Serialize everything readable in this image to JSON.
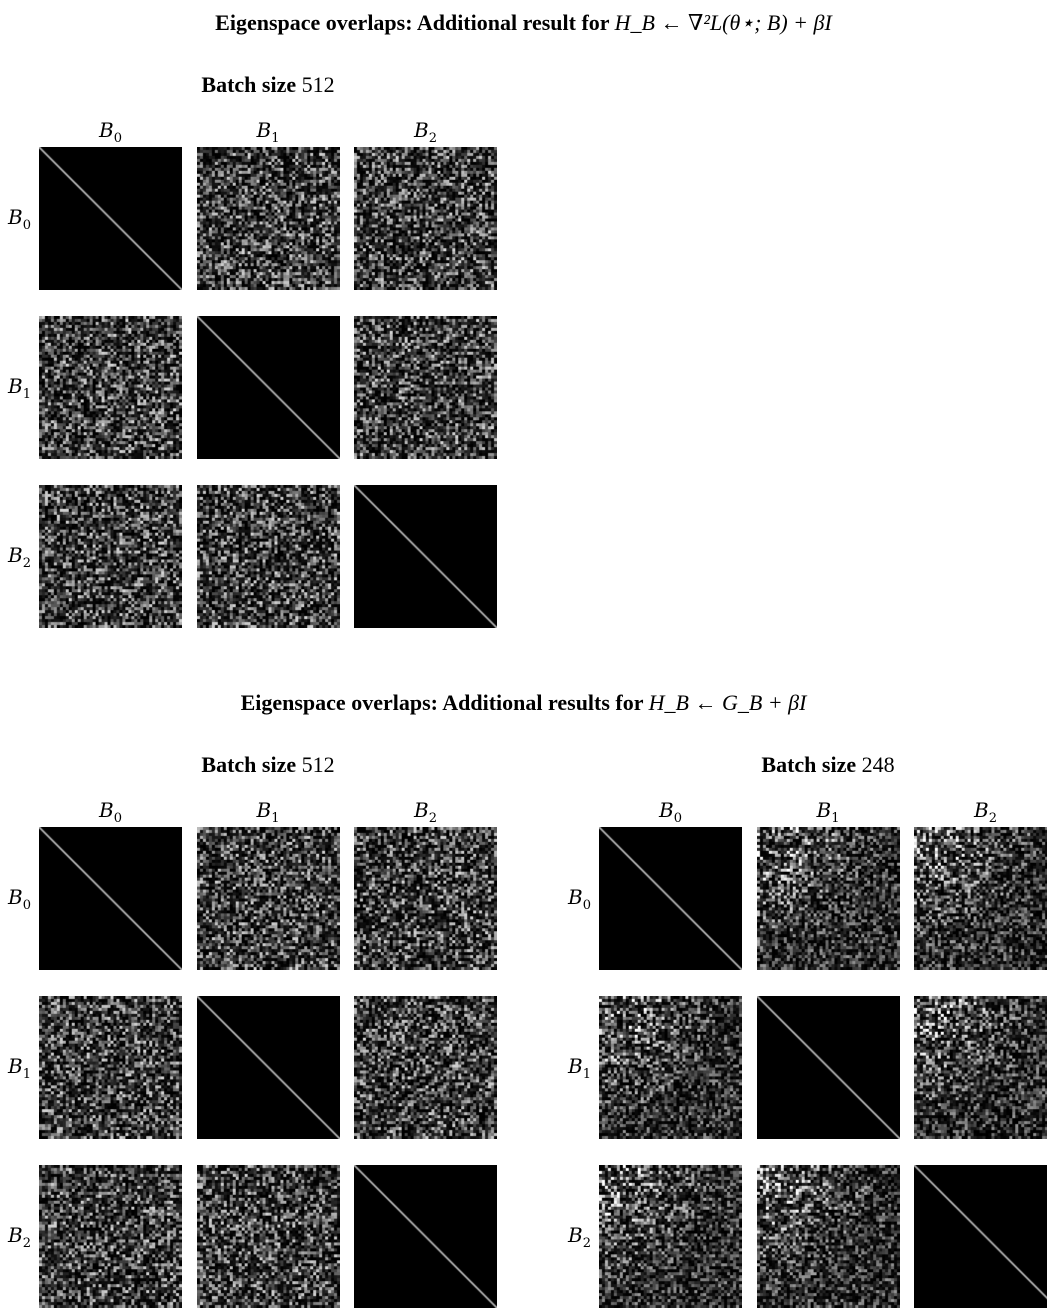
{
  "sections": [
    {
      "title_prefix": "Eigenspace overlaps: Additional result for ",
      "title_formula": "H_B ← ∇²L(θ⋆; B) + βI",
      "panels": [
        {
          "label_bold": "Batch size",
          "label_value": "512",
          "columns": [
            "B₀",
            "B₁",
            "B₂"
          ],
          "rows": [
            "B₀",
            "B₁",
            "B₂"
          ],
          "matrix": [
            [
              "diag",
              "noise",
              "noise"
            ],
            [
              "noise",
              "diag",
              "noise"
            ],
            [
              "noise",
              "noise",
              "diag"
            ]
          ]
        }
      ]
    },
    {
      "title_prefix": "Eigenspace overlaps: Additional results for ",
      "title_formula": "H_B ← G_B + βI",
      "panels": [
        {
          "label_bold": "Batch size",
          "label_value": "512",
          "columns": [
            "B₀",
            "B₁",
            "B₂"
          ],
          "rows": [
            "B₀",
            "B₁",
            "B₂"
          ],
          "matrix": [
            [
              "diag",
              "noise",
              "noise"
            ],
            [
              "noise",
              "diag",
              "noise"
            ],
            [
              "noise",
              "noise",
              "diag"
            ]
          ]
        },
        {
          "label_bold": "Batch size",
          "label_value": "248",
          "columns": [
            "B₀",
            "B₁",
            "B₂"
          ],
          "rows": [
            "B₀",
            "B₁",
            "B₂"
          ],
          "matrix": [
            [
              "diag",
              "noise-bright-corner",
              "noise-bright-corner"
            ],
            [
              "noise-bright-corner",
              "diag",
              "noise-bright-corner"
            ],
            [
              "noise-bright-corner",
              "noise-bright-corner",
              "diag"
            ]
          ]
        }
      ]
    }
  ],
  "chart_data": [
    {
      "type": "heatmap",
      "title": "Eigenspace overlaps: Additional result for H_B ← ∇²L(θ⋆; B) + βI — Batch size 512",
      "x": [
        "B₀",
        "B₁",
        "B₂"
      ],
      "y": [
        "B₀",
        "B₁",
        "B₂"
      ],
      "cells": [
        [
          "diag",
          "noise",
          "noise"
        ],
        [
          "noise",
          "diag",
          "noise"
        ],
        [
          "noise",
          "noise",
          "diag"
        ]
      ],
      "colormap": "grayscale"
    },
    {
      "type": "heatmap",
      "title": "Eigenspace overlaps: Additional results for H_B ← G_B + βI — Batch size 512",
      "x": [
        "B₀",
        "B₁",
        "B₂"
      ],
      "y": [
        "B₀",
        "B₁",
        "B₂"
      ],
      "cells": [
        [
          "diag",
          "noise",
          "noise"
        ],
        [
          "noise",
          "diag",
          "noise"
        ],
        [
          "noise",
          "noise",
          "diag"
        ]
      ],
      "colormap": "grayscale"
    },
    {
      "type": "heatmap",
      "title": "Eigenspace overlaps: Additional results for H_B ← G_B + βI — Batch size 248",
      "x": [
        "B₀",
        "B₁",
        "B₂"
      ],
      "y": [
        "B₀",
        "B₁",
        "B₂"
      ],
      "cells": [
        [
          "diag",
          "noise-bright-corner",
          "noise-bright-corner"
        ],
        [
          "noise-bright-corner",
          "diag",
          "noise-bright-corner"
        ],
        [
          "noise-bright-corner",
          "noise-bright-corner",
          "diag"
        ]
      ],
      "colormap": "grayscale"
    }
  ]
}
